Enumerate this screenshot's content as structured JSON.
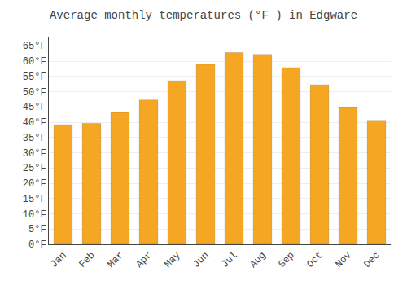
{
  "chart_data": {
    "type": "bar",
    "title": "Average monthly temperatures (°F ) in Edgware",
    "categories": [
      "Jan",
      "Feb",
      "Mar",
      "Apr",
      "May",
      "Jun",
      "Jul",
      "Aug",
      "Sep",
      "Oct",
      "Nov",
      "Dec"
    ],
    "values": [
      39.2,
      39.6,
      43.2,
      47.3,
      53.6,
      59.0,
      62.8,
      62.2,
      57.9,
      52.3,
      44.8,
      40.6
    ],
    "color": "#F5A623",
    "ylim": [
      0,
      68
    ],
    "yticks": [
      {
        "value": 0,
        "label": "0°F"
      },
      {
        "value": 5,
        "label": "5°F"
      },
      {
        "value": 10,
        "label": "10°F"
      },
      {
        "value": 15,
        "label": "15°F"
      },
      {
        "value": 20,
        "label": "20°F"
      },
      {
        "value": 25,
        "label": "25°F"
      },
      {
        "value": 30,
        "label": "30°F"
      },
      {
        "value": 35,
        "label": "35°F"
      },
      {
        "value": 40,
        "label": "40°F"
      },
      {
        "value": 45,
        "label": "45°F"
      },
      {
        "value": 50,
        "label": "50°F"
      },
      {
        "value": 55,
        "label": "55°F"
      },
      {
        "value": 60,
        "label": "60°F"
      },
      {
        "value": 65,
        "label": "65°F"
      }
    ],
    "grid": true
  }
}
